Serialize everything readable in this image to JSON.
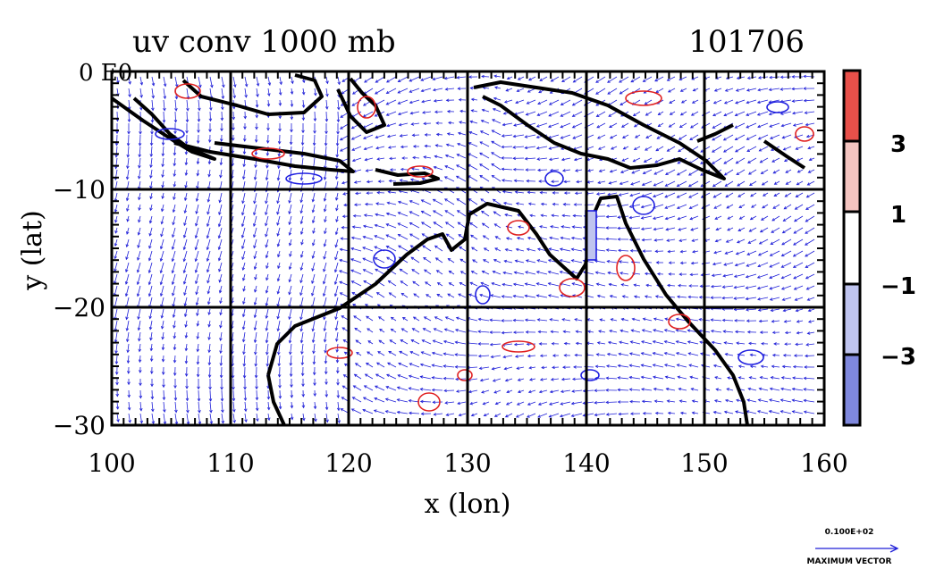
{
  "header": {
    "title": "uv conv 1000 mb",
    "date": "101706"
  },
  "axes": {
    "xlabel": "x (lon)",
    "ylabel": "y (lat)",
    "xticks": [
      "100",
      "110",
      "120",
      "130",
      "140",
      "150",
      "160"
    ],
    "yticks": [
      "0 E0",
      "−10",
      "−20",
      "−30"
    ],
    "xlim": [
      100,
      160
    ],
    "ylim": [
      -30,
      0
    ]
  },
  "colorbar": {
    "labels": [
      "3",
      "1",
      "−1",
      "−3"
    ],
    "colors": [
      "#e8504a",
      "#f4c4c0",
      "#ffffff",
      "#bfc4ef",
      "#7f88dd"
    ]
  },
  "legend": {
    "vector_value": "0.100E+02",
    "vector_label": "MAXIMUM VECTOR"
  },
  "colors": {
    "vector": "#1f1fd8",
    "positive_contour": "#e02020",
    "negative_contour": "#2020e0",
    "coastline": "#000000"
  }
}
